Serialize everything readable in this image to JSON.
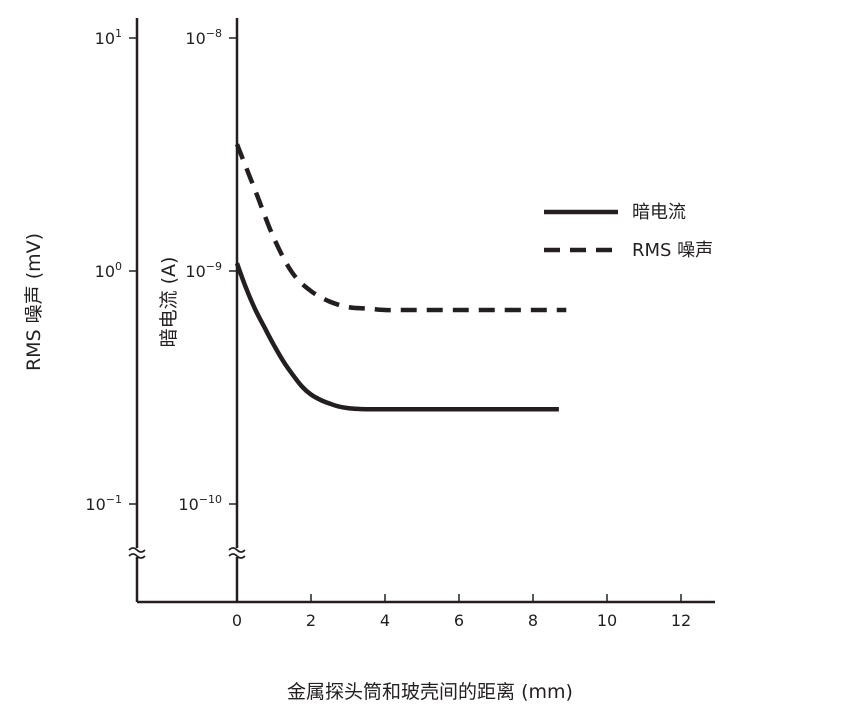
{
  "chart_data": {
    "type": "line",
    "x_label": "金属探头筒和玻壳间的距离 (mm)",
    "x_ticks": [
      "0",
      "2",
      "4",
      "6",
      "8",
      "10",
      "12"
    ],
    "x_range": [
      0,
      12
    ],
    "y_left": {
      "label": "RMS 噪声 (mV)",
      "scale": "log",
      "ticks": [
        {
          "base": "10",
          "exp": "1"
        },
        {
          "base": "10",
          "exp": "0"
        },
        {
          "base": "10",
          "exp": "−1"
        }
      ],
      "range": [
        0.1,
        10
      ]
    },
    "y_right": {
      "label": "暗电流 (A)",
      "scale": "log",
      "ticks": [
        {
          "base": "10",
          "exp": "−8"
        },
        {
          "base": "10",
          "exp": "−9"
        },
        {
          "base": "10",
          "exp": "−10"
        }
      ],
      "range": [
        1e-10,
        1e-08
      ]
    },
    "axis_break": true,
    "legend_position": "right",
    "series": [
      {
        "name": "暗电流",
        "style": "solid",
        "axis": "right",
        "x": [
          0,
          0.25,
          0.5,
          0.75,
          1,
          1.25,
          1.5,
          1.75,
          2,
          2.25,
          2.5,
          2.75,
          3,
          3.25,
          3.5,
          4,
          5,
          6,
          7,
          8,
          8.7
        ],
        "y": [
          1.08e-09,
          8.4e-10,
          6.8e-10,
          5.7e-10,
          4.8e-10,
          4.1e-10,
          3.6e-10,
          3.2e-10,
          2.95e-10,
          2.8e-10,
          2.7e-10,
          2.62e-10,
          2.58e-10,
          2.56e-10,
          2.55e-10,
          2.55e-10,
          2.55e-10,
          2.55e-10,
          2.55e-10,
          2.55e-10,
          2.55e-10
        ]
      },
      {
        "name": "RMS 噪声",
        "style": "dashed",
        "axis": "left",
        "x": [
          0,
          0.5,
          1,
          1.5,
          2,
          2.5,
          3,
          3.5,
          4,
          4.5,
          5,
          6,
          7,
          8,
          8.9
        ],
        "y": [
          3.5,
          2.2,
          1.38,
          0.98,
          0.82,
          0.74,
          0.7,
          0.69,
          0.68,
          0.68,
          0.68,
          0.68,
          0.68,
          0.68,
          0.68
        ]
      }
    ]
  }
}
